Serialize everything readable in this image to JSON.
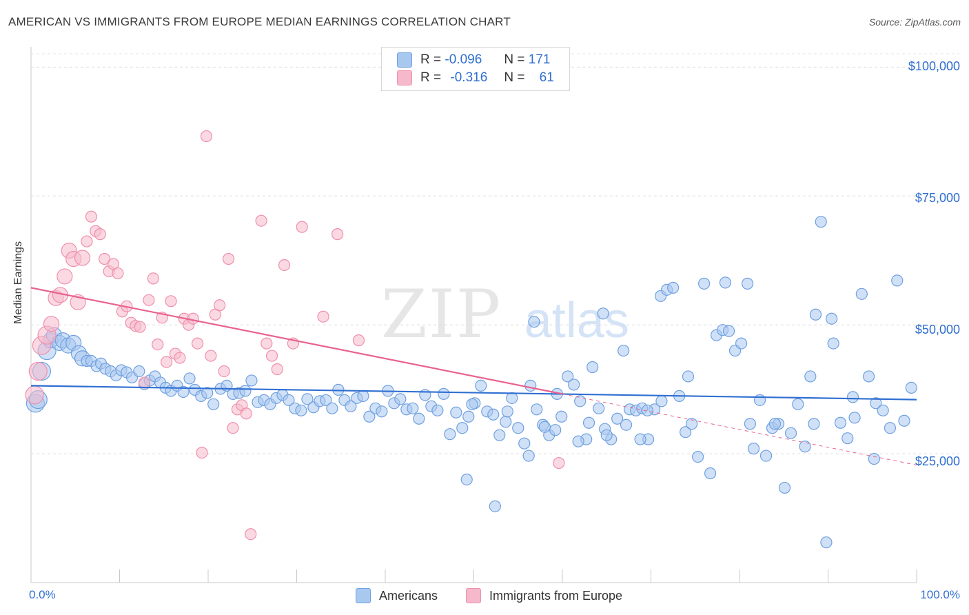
{
  "title": "AMERICAN VS IMMIGRANTS FROM EUROPE MEDIAN EARNINGS CORRELATION CHART",
  "source": "Source: ZipAtlas.com",
  "watermark": {
    "zip": "ZIP",
    "atlas": "atlas"
  },
  "legend": {
    "rows": [
      {
        "r_label": "R =",
        "r_value": "-0.096",
        "n_label": "N =",
        "n_value": "171",
        "color": "#a9c8f0"
      },
      {
        "r_label": "R =",
        "r_value": "-0.316",
        "n_label": "N =",
        "n_value": "61",
        "color": "#f6b9cc"
      }
    ]
  },
  "bottom_legend": [
    {
      "label": "Americans",
      "color": "#a9c8f0"
    },
    {
      "label": "Immigrants from Europe",
      "color": "#f6b9cc"
    }
  ],
  "axes": {
    "ylabel": "Median Earnings",
    "x_min_label": "0.0%",
    "x_max_label": "100.0%",
    "y_ticks": [
      "$100,000",
      "$75,000",
      "$50,000",
      "$25,000"
    ]
  },
  "chart_data": {
    "type": "scatter",
    "xlabel": "",
    "ylabel": "Median Earnings",
    "xlim": [
      0,
      100
    ],
    "ylim": [
      0,
      105000
    ],
    "y_ticks": [
      25000,
      50000,
      75000,
      100000
    ],
    "grid": true,
    "series": [
      {
        "name": "Americans",
        "color": "#6fa0e0",
        "fill": "#a9c8f0",
        "trend": {
          "x": [
            0,
            100
          ],
          "y": [
            38200,
            35500
          ]
        },
        "points": [
          [
            0.5,
            34800
          ],
          [
            0.8,
            35500
          ],
          [
            1.2,
            41000
          ],
          [
            1.8,
            45000
          ],
          [
            2.2,
            47000
          ],
          [
            2.6,
            48000
          ],
          [
            3.2,
            46500
          ],
          [
            3.6,
            47000
          ],
          [
            4.2,
            46000
          ],
          [
            4.8,
            46500
          ],
          [
            5.4,
            44500
          ],
          [
            5.8,
            43500
          ],
          [
            6.3,
            43000
          ],
          [
            6.8,
            43000
          ],
          [
            7.4,
            42000
          ],
          [
            7.9,
            42500
          ],
          [
            8.4,
            41500
          ],
          [
            9.0,
            41000
          ],
          [
            9.6,
            40200
          ],
          [
            10.2,
            41200
          ],
          [
            10.8,
            40800
          ],
          [
            11.4,
            39800
          ],
          [
            12.2,
            41000
          ],
          [
            12.8,
            38500
          ],
          [
            13.4,
            39200
          ],
          [
            14.0,
            40000
          ],
          [
            14.6,
            38800
          ],
          [
            15.2,
            37800
          ],
          [
            15.8,
            37200
          ],
          [
            16.5,
            38200
          ],
          [
            17.2,
            37000
          ],
          [
            17.9,
            39600
          ],
          [
            18.5,
            37400
          ],
          [
            19.2,
            36200
          ],
          [
            19.9,
            36800
          ],
          [
            20.6,
            34600
          ],
          [
            21.4,
            37600
          ],
          [
            22.1,
            38200
          ],
          [
            22.8,
            36600
          ],
          [
            23.5,
            36800
          ],
          [
            24.2,
            37200
          ],
          [
            24.9,
            39200
          ],
          [
            25.6,
            35000
          ],
          [
            26.3,
            35400
          ],
          [
            27.0,
            34600
          ],
          [
            27.7,
            35800
          ],
          [
            28.4,
            36400
          ],
          [
            29.1,
            35400
          ],
          [
            29.8,
            33800
          ],
          [
            30.5,
            33400
          ],
          [
            31.2,
            35600
          ],
          [
            31.9,
            34000
          ],
          [
            32.6,
            35200
          ],
          [
            33.3,
            35400
          ],
          [
            34.0,
            33800
          ],
          [
            34.7,
            37400
          ],
          [
            35.4,
            35400
          ],
          [
            36.1,
            34200
          ],
          [
            36.8,
            35800
          ],
          [
            37.5,
            36200
          ],
          [
            38.2,
            32200
          ],
          [
            38.9,
            33800
          ],
          [
            39.6,
            33200
          ],
          [
            40.3,
            37200
          ],
          [
            41.0,
            34800
          ],
          [
            41.7,
            35600
          ],
          [
            42.4,
            33600
          ],
          [
            43.1,
            33800
          ],
          [
            43.8,
            31800
          ],
          [
            44.5,
            36400
          ],
          [
            45.2,
            34200
          ],
          [
            45.9,
            33400
          ],
          [
            46.6,
            36600
          ],
          [
            47.3,
            28800
          ],
          [
            48.0,
            33000
          ],
          [
            48.7,
            30000
          ],
          [
            49.4,
            32200
          ],
          [
            50.1,
            34800
          ],
          [
            50.8,
            38200
          ],
          [
            51.5,
            33200
          ],
          [
            52.2,
            32600
          ],
          [
            52.9,
            28600
          ],
          [
            53.6,
            31200
          ],
          [
            54.3,
            35800
          ],
          [
            55.0,
            30000
          ],
          [
            55.7,
            27000
          ],
          [
            56.4,
            38200
          ],
          [
            57.1,
            33600
          ],
          [
            57.8,
            30600
          ],
          [
            58.5,
            28600
          ],
          [
            59.2,
            29600
          ],
          [
            59.9,
            32200
          ],
          [
            60.6,
            40000
          ],
          [
            61.3,
            38400
          ],
          [
            62.0,
            35200
          ],
          [
            62.7,
            27800
          ],
          [
            63.4,
            41800
          ],
          [
            64.1,
            33800
          ],
          [
            64.8,
            29800
          ],
          [
            65.5,
            27800
          ],
          [
            66.2,
            31800
          ],
          [
            66.9,
            45000
          ],
          [
            67.6,
            33600
          ],
          [
            68.3,
            33400
          ],
          [
            69.0,
            33800
          ],
          [
            69.7,
            27800
          ],
          [
            70.4,
            33600
          ],
          [
            71.1,
            55600
          ],
          [
            71.8,
            56800
          ],
          [
            72.5,
            57200
          ],
          [
            73.2,
            36200
          ],
          [
            73.9,
            29200
          ],
          [
            74.6,
            30800
          ],
          [
            75.3,
            24400
          ],
          [
            76.0,
            58000
          ],
          [
            76.7,
            21200
          ],
          [
            77.4,
            48000
          ],
          [
            78.1,
            49000
          ],
          [
            78.8,
            48800
          ],
          [
            79.5,
            45000
          ],
          [
            80.2,
            46400
          ],
          [
            80.9,
            58000
          ],
          [
            81.6,
            26000
          ],
          [
            82.3,
            35400
          ],
          [
            83.0,
            24600
          ],
          [
            83.7,
            30000
          ],
          [
            84.4,
            30800
          ],
          [
            85.1,
            18400
          ],
          [
            85.8,
            29000
          ],
          [
            86.6,
            34600
          ],
          [
            87.4,
            26400
          ],
          [
            88.0,
            40000
          ],
          [
            88.6,
            52000
          ],
          [
            89.2,
            70000
          ],
          [
            89.8,
            7800
          ],
          [
            90.6,
            46400
          ],
          [
            91.4,
            31000
          ],
          [
            92.2,
            28000
          ],
          [
            93.0,
            32000
          ],
          [
            93.8,
            56000
          ],
          [
            94.6,
            40000
          ],
          [
            95.4,
            34800
          ],
          [
            96.2,
            33400
          ],
          [
            97.0,
            30000
          ],
          [
            97.8,
            58600
          ],
          [
            98.6,
            31400
          ],
          [
            99.4,
            37800
          ],
          [
            56.8,
            50600
          ],
          [
            59.4,
            36600
          ],
          [
            64.6,
            52200
          ],
          [
            69.6,
            33400
          ],
          [
            71.2,
            35200
          ],
          [
            74.2,
            40000
          ],
          [
            78.4,
            58200
          ],
          [
            81.2,
            30800
          ],
          [
            84.0,
            30800
          ],
          [
            88.4,
            30800
          ],
          [
            90.4,
            51200
          ],
          [
            92.8,
            36000
          ],
          [
            95.2,
            24000
          ],
          [
            49.2,
            20000
          ],
          [
            49.8,
            34600
          ],
          [
            52.4,
            14800
          ],
          [
            53.8,
            33200
          ],
          [
            56.2,
            24600
          ],
          [
            58.0,
            30200
          ],
          [
            61.8,
            27400
          ],
          [
            63.0,
            31000
          ],
          [
            65.0,
            28600
          ],
          [
            67.2,
            30600
          ],
          [
            68.8,
            27800
          ]
        ]
      },
      {
        "name": "Immigrants from Europe",
        "color": "#f08fac",
        "fill": "#f6b9cc",
        "trend": {
          "x": [
            0,
            60
          ],
          "y": [
            57200,
            36600
          ]
        },
        "trend_dashed": {
          "x": [
            60,
            100
          ],
          "y": [
            36600,
            22800
          ]
        },
        "points": [
          [
            0.4,
            36400
          ],
          [
            0.8,
            41000
          ],
          [
            1.2,
            46000
          ],
          [
            1.8,
            48000
          ],
          [
            2.3,
            50200
          ],
          [
            2.8,
            55200
          ],
          [
            3.3,
            55800
          ],
          [
            3.8,
            59400
          ],
          [
            4.3,
            64400
          ],
          [
            4.8,
            62800
          ],
          [
            5.3,
            54400
          ],
          [
            5.8,
            63000
          ],
          [
            6.3,
            66200
          ],
          [
            6.8,
            71000
          ],
          [
            7.3,
            68200
          ],
          [
            7.8,
            67600
          ],
          [
            8.3,
            62800
          ],
          [
            8.8,
            60400
          ],
          [
            9.3,
            61800
          ],
          [
            9.8,
            60000
          ],
          [
            10.3,
            52600
          ],
          [
            10.8,
            53600
          ],
          [
            11.3,
            50400
          ],
          [
            11.8,
            49800
          ],
          [
            12.3,
            49600
          ],
          [
            12.8,
            38800
          ],
          [
            13.3,
            54800
          ],
          [
            13.8,
            59000
          ],
          [
            14.3,
            46200
          ],
          [
            14.8,
            51400
          ],
          [
            15.3,
            42800
          ],
          [
            15.8,
            54600
          ],
          [
            16.3,
            44400
          ],
          [
            16.8,
            43600
          ],
          [
            17.3,
            51200
          ],
          [
            17.8,
            50000
          ],
          [
            18.3,
            51200
          ],
          [
            18.8,
            46400
          ],
          [
            19.3,
            25200
          ],
          [
            19.8,
            86600
          ],
          [
            20.3,
            44000
          ],
          [
            20.8,
            52000
          ],
          [
            21.3,
            53800
          ],
          [
            21.8,
            41000
          ],
          [
            22.3,
            62800
          ],
          [
            22.8,
            30000
          ],
          [
            23.3,
            33600
          ],
          [
            23.8,
            34400
          ],
          [
            24.3,
            32800
          ],
          [
            24.8,
            9400
          ],
          [
            26.0,
            70200
          ],
          [
            26.6,
            46400
          ],
          [
            27.2,
            44000
          ],
          [
            27.8,
            41400
          ],
          [
            28.6,
            61600
          ],
          [
            29.6,
            46400
          ],
          [
            30.6,
            69000
          ],
          [
            33.0,
            51600
          ],
          [
            34.6,
            67600
          ],
          [
            37.0,
            47000
          ],
          [
            59.6,
            23200
          ]
        ]
      }
    ]
  }
}
